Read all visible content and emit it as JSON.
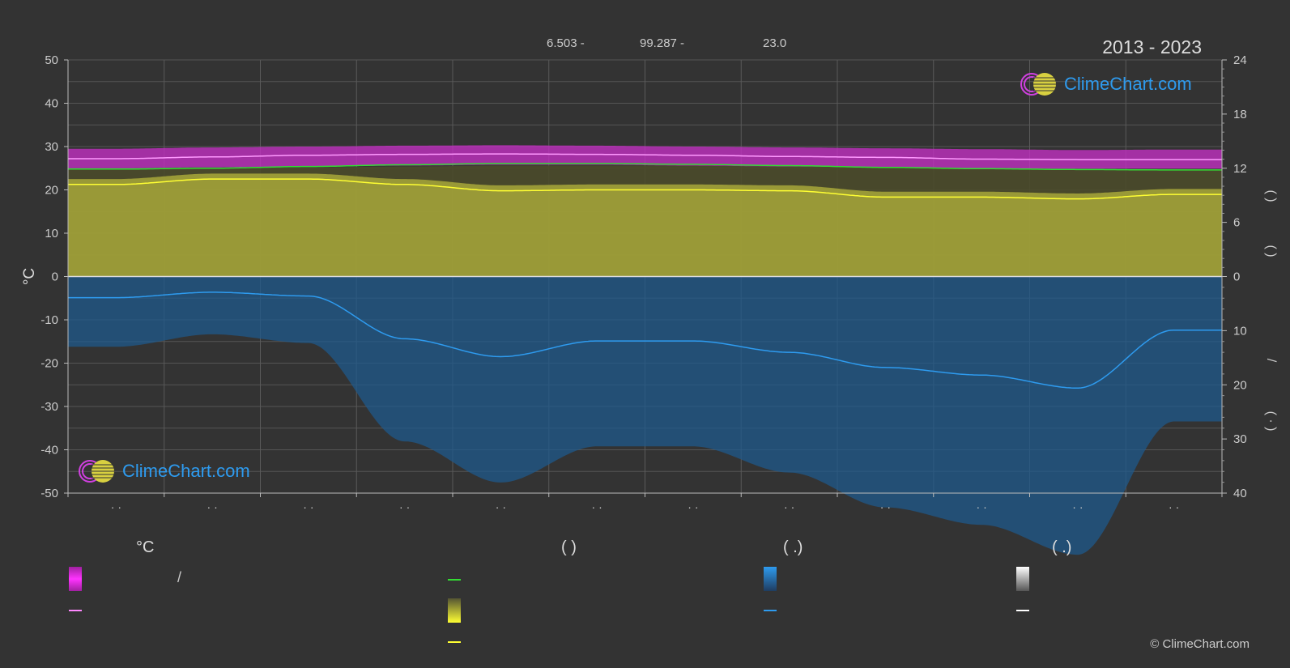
{
  "header": {
    "coord_lat": "6.503 -",
    "coord_lon": "99.287 -",
    "elevation": "23.0",
    "period": "2013 - 2023"
  },
  "branding": {
    "logo_text": "ClimeChart.com",
    "copyright": "© ClimeChart.com"
  },
  "legend": {
    "temp_unit": "°C",
    "sun_paren": "(            )",
    "rain_paren": "(    .)",
    "snow_paren": "(    .)",
    "temp_range_slash": "/"
  },
  "colors": {
    "background": "#333333",
    "temp_band": "#e040e0",
    "temp_mean": "#ff88ff",
    "sea_temp": "#33dd33",
    "daylight_band": "#b8b82e",
    "sunshine": "#ffff33",
    "rain_bar": "#1f78c8",
    "rain_line": "#2e9bef",
    "snow": "#ffffff",
    "logo": "#2e9bef"
  },
  "chart_data": {
    "type": "line",
    "period": "2013 - 2023",
    "left_axis": {
      "label": "°C",
      "ylim": [
        -50,
        50
      ],
      "ticks": [
        50,
        40,
        30,
        20,
        10,
        0,
        -10,
        -20,
        -30,
        -40,
        -50
      ]
    },
    "right_axis_top": {
      "ylim": [
        0,
        24
      ],
      "ticks": [
        24,
        18,
        12,
        6,
        0
      ]
    },
    "right_axis_bottom": {
      "ylim": [
        0,
        40
      ],
      "ticks": [
        0,
        10,
        20,
        30,
        40
      ]
    },
    "x_tick_labels": [
      "· ·",
      "· ·",
      "· ·",
      "· ·",
      "· ·",
      "· ·",
      "· ·",
      "· ·",
      "· ·",
      "· ·",
      "· ·",
      "· ·"
    ],
    "months": 12,
    "grid": true,
    "series": [
      {
        "key": "temp_max",
        "values": [
          29.5,
          29.8,
          30.0,
          30.2,
          30.3,
          30.2,
          30.0,
          29.8,
          29.6,
          29.4,
          29.2,
          29.3
        ]
      },
      {
        "key": "temp_min",
        "values": [
          25.0,
          25.2,
          25.4,
          25.6,
          25.8,
          25.8,
          25.6,
          25.4,
          25.2,
          25.0,
          24.9,
          24.9
        ]
      },
      {
        "key": "temp_mean",
        "values": [
          27.2,
          27.6,
          28.0,
          28.2,
          28.3,
          28.2,
          28.0,
          27.7,
          27.5,
          27.1,
          27.0,
          27.0
        ]
      },
      {
        "key": "sea_temp",
        "values": [
          24.8,
          25.0,
          25.4,
          25.8,
          26.1,
          26.1,
          25.9,
          25.6,
          25.2,
          24.9,
          24.7,
          24.6
        ]
      },
      {
        "key": "daylight_hours",
        "axis": "right_top",
        "values": [
          11.9,
          12.0,
          12.1,
          12.2,
          12.3,
          12.3,
          12.3,
          12.2,
          12.1,
          12.0,
          11.9,
          11.9
        ]
      },
      {
        "key": "sunshine_hours",
        "axis": "right_top",
        "values": [
          10.2,
          10.8,
          10.8,
          10.2,
          9.5,
          9.6,
          9.6,
          9.5,
          8.8,
          8.8,
          8.6,
          9.1
        ]
      },
      {
        "key": "precipitation_mm",
        "axis": "right_bottom",
        "values": [
          3.9,
          2.9,
          3.6,
          11.5,
          14.8,
          11.9,
          11.9,
          14.0,
          16.8,
          18.2,
          20.6,
          9.9
        ]
      }
    ]
  }
}
